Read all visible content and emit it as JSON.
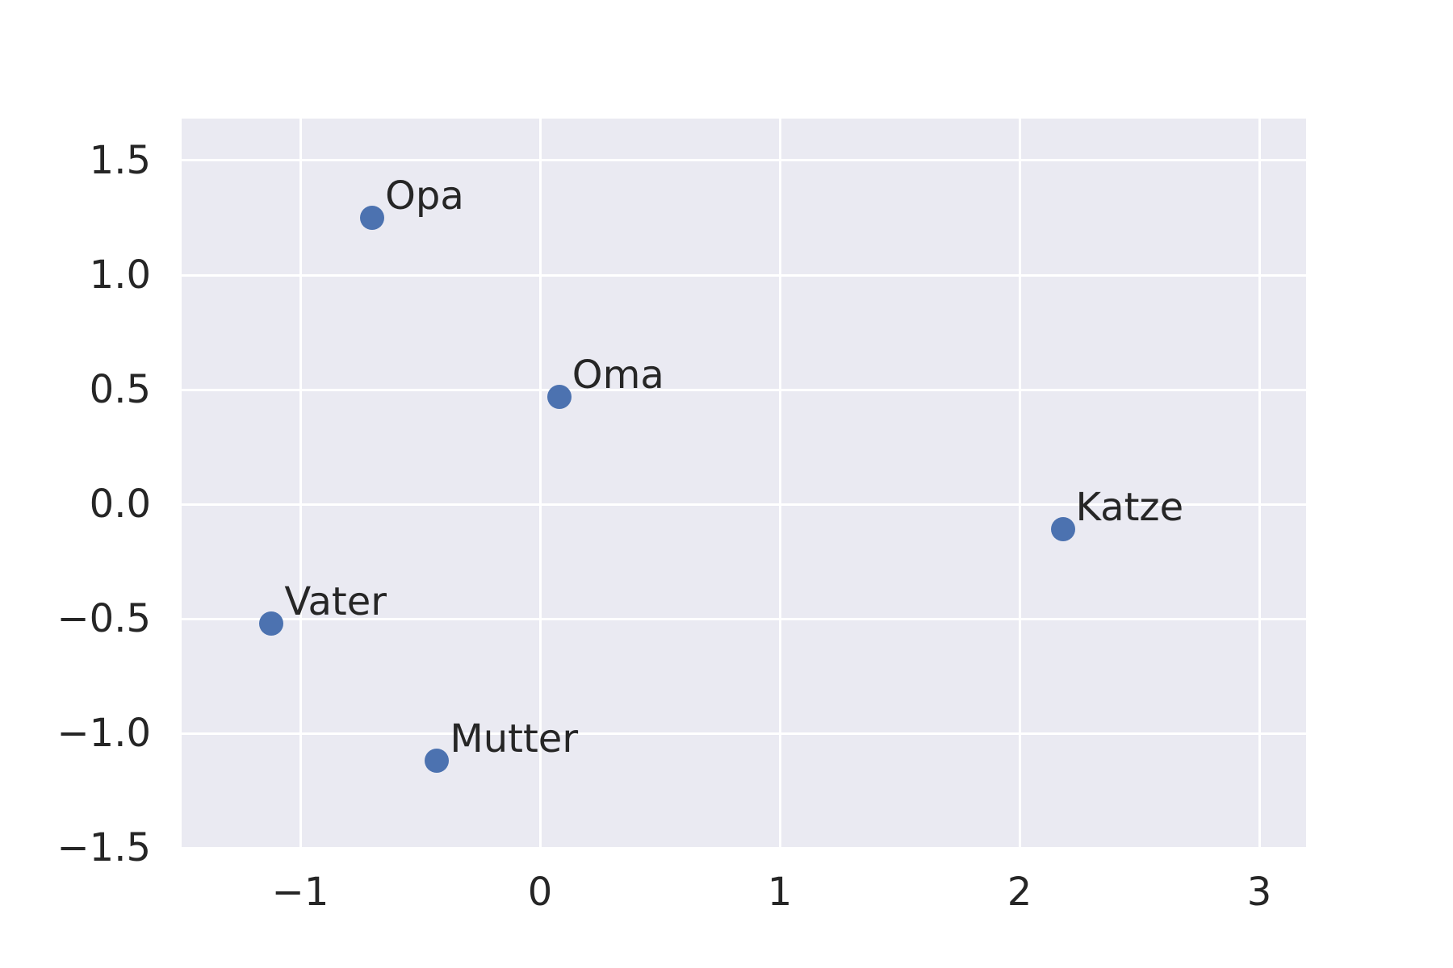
{
  "figure": {
    "background_color": "#ffffff"
  },
  "chart_data": {
    "type": "scatter",
    "title": "",
    "xlabel": "",
    "ylabel": "",
    "grid": true,
    "legend": false,
    "style": {
      "axes_background": "#eaeaf2",
      "gridline_color": "#ffffff",
      "marker_color": "#4c72b0",
      "text_color": "#262626"
    },
    "xlim": [
      -1.495,
      3.195
    ],
    "ylim": [
      -1.496,
      1.683
    ],
    "xticks": [
      {
        "value": -1,
        "label": "−1"
      },
      {
        "value": 0,
        "label": "0"
      },
      {
        "value": 1,
        "label": "1"
      },
      {
        "value": 2,
        "label": "2"
      },
      {
        "value": 3,
        "label": "3"
      }
    ],
    "yticks": [
      {
        "value": -1.5,
        "label": "−1.5"
      },
      {
        "value": -1.0,
        "label": "−1.0"
      },
      {
        "value": -0.5,
        "label": "−0.5"
      },
      {
        "value": 0.0,
        "label": "0.0"
      },
      {
        "value": 0.5,
        "label": "0.5"
      },
      {
        "value": 1.0,
        "label": "1.0"
      },
      {
        "value": 1.5,
        "label": "1.5"
      }
    ],
    "points": [
      {
        "label": "Opa",
        "x": -0.7,
        "y": 1.25
      },
      {
        "label": "Oma",
        "x": 0.08,
        "y": 0.47
      },
      {
        "label": "Katze",
        "x": 2.18,
        "y": -0.11
      },
      {
        "label": "Vater",
        "x": -1.12,
        "y": -0.52
      },
      {
        "label": "Mutter",
        "x": -0.43,
        "y": -1.12
      }
    ]
  }
}
